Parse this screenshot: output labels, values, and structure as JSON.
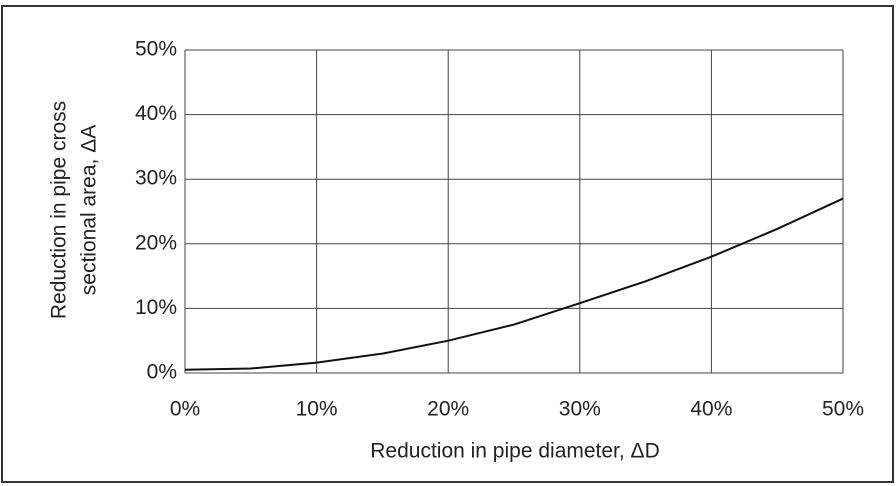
{
  "chart_data": {
    "type": "line",
    "xlabel": "Reduction in pipe diameter, ΔD",
    "ylabel": [
      "Reduction in pipe cross",
      "sectional area, ΔA"
    ],
    "x": [
      0,
      5,
      10,
      15,
      20,
      25,
      30,
      35,
      40,
      45,
      50
    ],
    "series": [
      {
        "color": "#111111",
        "values": [
          0.5,
          0.7,
          1.6,
          3,
          5,
          7.5,
          10.8,
          14.2,
          18,
          22.3,
          27
        ]
      }
    ],
    "xlim": [
      0,
      50
    ],
    "xticks": [
      {
        "value": 0,
        "label": "0%"
      },
      {
        "value": 10,
        "label": "10%"
      },
      {
        "value": 20,
        "label": "20%"
      },
      {
        "value": 30,
        "label": "30%"
      },
      {
        "value": 40,
        "label": "40%"
      },
      {
        "value": 50,
        "label": "50%"
      }
    ],
    "ylim": [
      0,
      50
    ],
    "yticks": [
      {
        "value": 0,
        "label": "0%"
      },
      {
        "value": 10,
        "label": "10%"
      },
      {
        "value": 20,
        "label": "20%"
      },
      {
        "value": 30,
        "label": "30%"
      },
      {
        "value": 40,
        "label": "40%"
      },
      {
        "value": 50,
        "label": "50%"
      }
    ],
    "grid": true
  }
}
